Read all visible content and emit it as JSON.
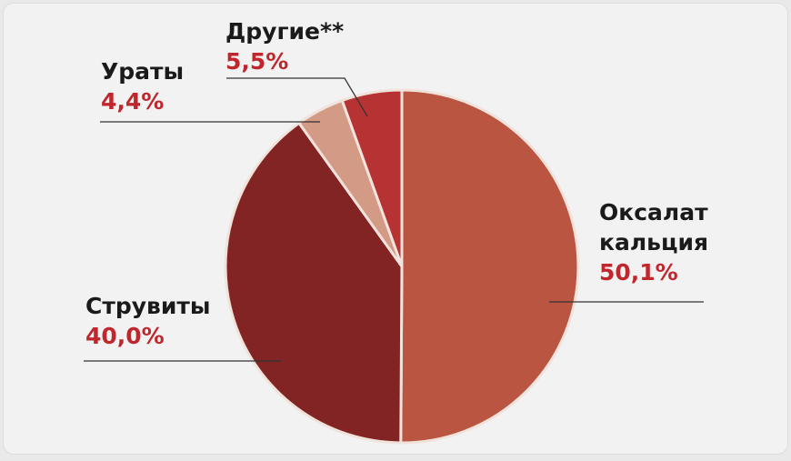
{
  "chart_data": {
    "type": "pie",
    "categories": [
      "Оксалат кальция",
      "Струвиты",
      "Ураты",
      "Другие**"
    ],
    "values": [
      50.1,
      40.0,
      4.4,
      5.5
    ],
    "value_labels": [
      "50,1%",
      "40,0%",
      "4,4%",
      "5,5%"
    ],
    "colors": [
      "#b95541",
      "#822424",
      "#d39a86",
      "#b73333"
    ]
  }
}
